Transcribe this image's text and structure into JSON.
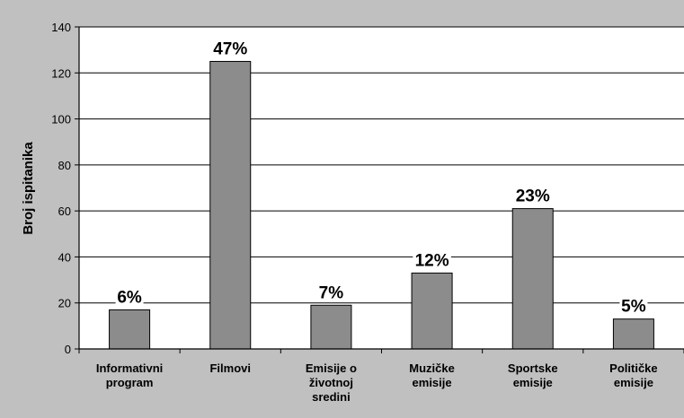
{
  "chart_data": {
    "type": "bar",
    "categories": [
      [
        "Informativni",
        "program"
      ],
      [
        "Filmovi"
      ],
      [
        "Emisije o",
        "životnoj",
        "sredini"
      ],
      [
        "Muzičke",
        "emisije"
      ],
      [
        "Sportske",
        "emisije"
      ],
      [
        "Političke",
        "emisije"
      ]
    ],
    "values": [
      17,
      125,
      19,
      33,
      61,
      13
    ],
    "data_labels": [
      "6%",
      "47%",
      "7%",
      "12%",
      "23%",
      "5%"
    ],
    "title": "",
    "xlabel": "",
    "ylabel": "Broj ispitanika",
    "ylim": [
      0,
      140
    ],
    "yticks": [
      0,
      20,
      40,
      60,
      80,
      100,
      120,
      140
    ],
    "grid": true,
    "legend": "none",
    "colors": {
      "bar": "#8c8c8c",
      "bar_stroke": "#000000",
      "plot_background": "#ffffff",
      "outer_background": "#c0c0c0",
      "gridline": "#000000"
    }
  }
}
